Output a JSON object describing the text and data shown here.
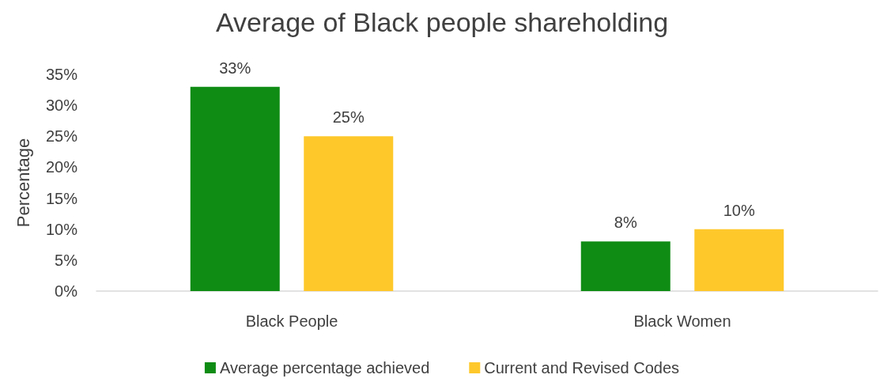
{
  "chart_data": {
    "type": "bar",
    "title": "Average of Black people shareholding",
    "ylabel": "Percentage",
    "categories": [
      "Black People",
      "Black Women"
    ],
    "series": [
      {
        "name": "Average percentage achieved",
        "color": "#0f8c14",
        "values": [
          33,
          8
        ],
        "value_labels": [
          "33%",
          "8%"
        ]
      },
      {
        "name": "Current and Revised Codes",
        "color": "#fec82b",
        "values": [
          25,
          10
        ],
        "value_labels": [
          "25%",
          "10%"
        ]
      }
    ],
    "ylim": [
      0,
      35
    ],
    "yticks": [
      {
        "value": 0,
        "label": "0%"
      },
      {
        "value": 5,
        "label": "5%"
      },
      {
        "value": 10,
        "label": "10%"
      },
      {
        "value": 15,
        "label": "15%"
      },
      {
        "value": 20,
        "label": "20%"
      },
      {
        "value": 25,
        "label": "25%"
      },
      {
        "value": 30,
        "label": "30%"
      },
      {
        "value": 35,
        "label": "35%"
      }
    ],
    "grid": false,
    "legend": "bottom"
  }
}
